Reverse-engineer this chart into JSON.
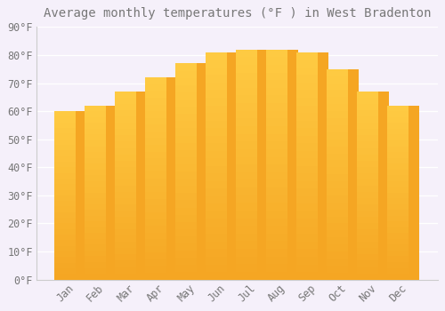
{
  "title": "Average monthly temperatures (°F ) in West Bradenton",
  "months": [
    "Jan",
    "Feb",
    "Mar",
    "Apr",
    "May",
    "Jun",
    "Jul",
    "Aug",
    "Sep",
    "Oct",
    "Nov",
    "Dec"
  ],
  "values": [
    60,
    62,
    67,
    72,
    77,
    81,
    82,
    82,
    81,
    75,
    67,
    62
  ],
  "bar_color_bottom": "#F5A623",
  "bar_color_top": "#FFCC44",
  "background_color": "#F5F0FA",
  "plot_bg_color": "#F5F0FA",
  "grid_color": "#FFFFFF",
  "text_color": "#777777",
  "spine_color": "#CCCCCC",
  "ylim": [
    0,
    90
  ],
  "yticks": [
    0,
    10,
    20,
    30,
    40,
    50,
    60,
    70,
    80,
    90
  ],
  "ytick_labels": [
    "0°F",
    "10°F",
    "20°F",
    "30°F",
    "40°F",
    "50°F",
    "60°F",
    "70°F",
    "80°F",
    "90°F"
  ],
  "title_fontsize": 10,
  "tick_fontsize": 8.5,
  "bar_width": 0.7
}
